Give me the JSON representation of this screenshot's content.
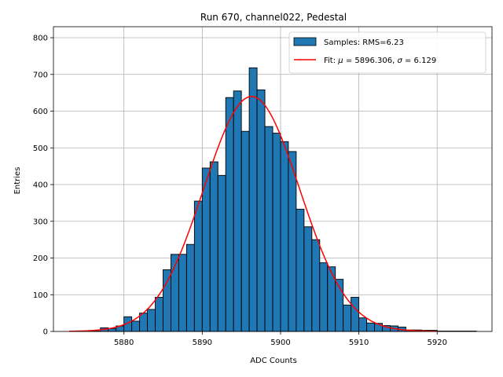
{
  "chart_data": {
    "type": "bar",
    "title": "Run 670, channel022, Pedestal",
    "xlabel": "ADC Counts",
    "ylabel": "Entries",
    "xlim": [
      5871,
      5927
    ],
    "ylim": [
      0,
      830
    ],
    "xticks": [
      5880,
      5890,
      5900,
      5910,
      5920
    ],
    "yticks": [
      0,
      100,
      200,
      300,
      400,
      500,
      600,
      700,
      800
    ],
    "grid": true,
    "legend_position": "top-right",
    "colors": {
      "bars": "#1f77b4",
      "bar_edge": "#000000",
      "fit": "#ff0000",
      "grid": "#b0b0b0"
    },
    "series": [
      {
        "name": "Samples: RMS=6.23",
        "kind": "histogram",
        "bin_width": 1,
        "bin_starts": [
          5874,
          5875,
          5876,
          5877,
          5878,
          5879,
          5880,
          5881,
          5882,
          5883,
          5884,
          5885,
          5886,
          5887,
          5888,
          5889,
          5890,
          5891,
          5892,
          5893,
          5894,
          5895,
          5896,
          5897,
          5898,
          5899,
          5900,
          5901,
          5902,
          5903,
          5904,
          5905,
          5906,
          5907,
          5908,
          5909,
          5910,
          5911,
          5912,
          5913,
          5914,
          5915,
          5916,
          5917,
          5918,
          5919,
          5920,
          5921,
          5922,
          5923,
          5924
        ],
        "values": [
          1,
          1,
          1,
          10,
          8,
          15,
          40,
          28,
          50,
          60,
          93,
          168,
          210,
          210,
          237,
          355,
          445,
          462,
          425,
          637,
          655,
          545,
          718,
          658,
          558,
          540,
          517,
          490,
          333,
          285,
          250,
          187,
          176,
          142,
          72,
          93,
          37,
          23,
          22,
          16,
          15,
          12,
          4,
          4,
          3,
          3,
          1,
          1,
          1,
          1,
          1
        ]
      },
      {
        "name": "Fit: $\\mu$ = 5896.306, $\\sigma$ = 6.129",
        "kind": "gaussian",
        "mu": 5896.306,
        "sigma": 6.129,
        "amplitude": 640,
        "x_range": [
          5873,
          5920
        ]
      }
    ],
    "legend": {
      "samples_prefix": "Samples: RMS=6.23",
      "fit_prefix": "Fit: ",
      "mu_symbol": "μ",
      "mu_text": " = 5896.306, ",
      "sigma_symbol": "σ",
      "sigma_text": " = 6.129"
    }
  }
}
